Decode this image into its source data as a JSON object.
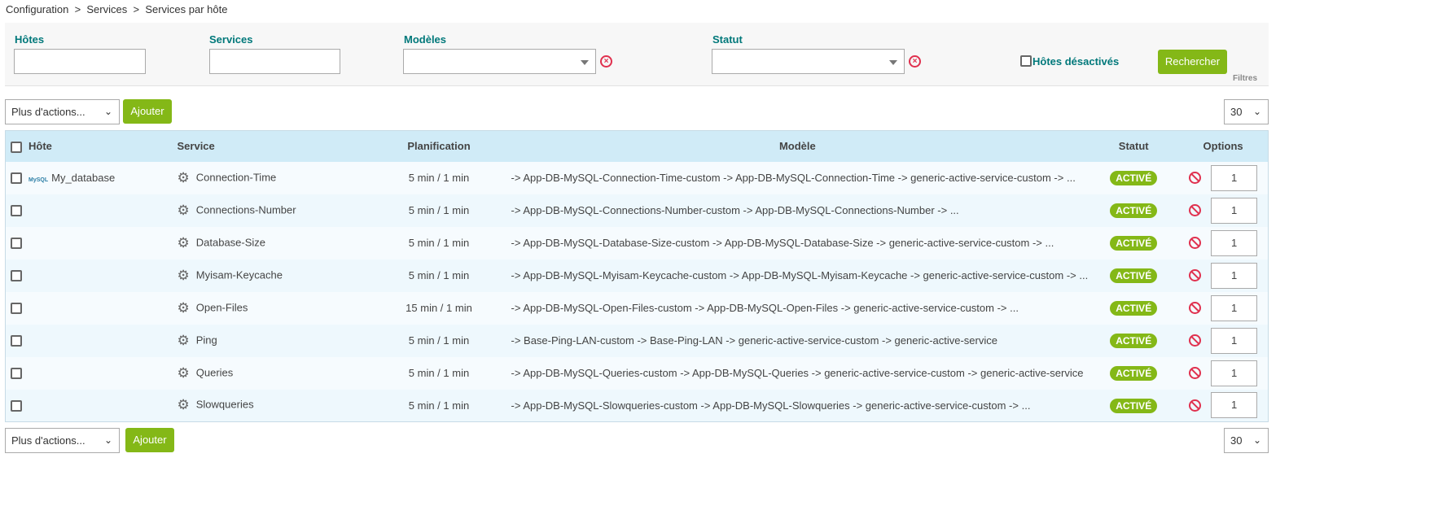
{
  "breadcrumb": [
    "Configuration",
    ">",
    "Services",
    ">",
    "Services par hôte"
  ],
  "filters": {
    "hosts_label": "Hôtes",
    "services_label": "Services",
    "templates_label": "Modèles",
    "status_label": "Statut",
    "disabled_hosts_label": "Hôtes désactivés",
    "search_label": "Rechercher",
    "section_label": "Filtres",
    "hosts_value": "",
    "services_value": "",
    "templates_value": "",
    "status_value": ""
  },
  "toolbar": {
    "more_actions": "Plus d'actions...",
    "add_label": "Ajouter",
    "page_size": "30"
  },
  "table": {
    "headers": {
      "host": "Hôte",
      "service": "Service",
      "schedule": "Planification",
      "template": "Modèle",
      "status": "Statut",
      "options": "Options"
    },
    "rows": [
      {
        "host": "My_database",
        "service": "Connection-Time",
        "schedule": "5 min / 1 min",
        "template": "-> App-DB-MySQL-Connection-Time-custom -> App-DB-MySQL-Connection-Time -> generic-active-service-custom -> ...",
        "status": "ACTIVÉ",
        "dup": "1"
      },
      {
        "host": "",
        "service": "Connections-Number",
        "schedule": "5 min / 1 min",
        "template": "-> App-DB-MySQL-Connections-Number-custom -> App-DB-MySQL-Connections-Number -> ...",
        "status": "ACTIVÉ",
        "dup": "1"
      },
      {
        "host": "",
        "service": "Database-Size",
        "schedule": "5 min / 1 min",
        "template": "-> App-DB-MySQL-Database-Size-custom -> App-DB-MySQL-Database-Size -> generic-active-service-custom -> ...",
        "status": "ACTIVÉ",
        "dup": "1"
      },
      {
        "host": "",
        "service": "Myisam-Keycache",
        "schedule": "5 min / 1 min",
        "template": "-> App-DB-MySQL-Myisam-Keycache-custom -> App-DB-MySQL-Myisam-Keycache -> generic-active-service-custom -> ...",
        "status": "ACTIVÉ",
        "dup": "1"
      },
      {
        "host": "",
        "service": "Open-Files",
        "schedule": "15 min / 1 min",
        "template": "-> App-DB-MySQL-Open-Files-custom -> App-DB-MySQL-Open-Files -> generic-active-service-custom -> ...",
        "status": "ACTIVÉ",
        "dup": "1"
      },
      {
        "host": "",
        "service": "Ping",
        "schedule": "5 min / 1 min",
        "template": "-> Base-Ping-LAN-custom -> Base-Ping-LAN -> generic-active-service-custom -> generic-active-service",
        "status": "ACTIVÉ",
        "dup": "1"
      },
      {
        "host": "",
        "service": "Queries",
        "schedule": "5 min / 1 min",
        "template": "-> App-DB-MySQL-Queries-custom -> App-DB-MySQL-Queries -> generic-active-service-custom -> generic-active-service",
        "status": "ACTIVÉ",
        "dup": "1"
      },
      {
        "host": "",
        "service": "Slowqueries",
        "schedule": "5 min / 1 min",
        "template": "-> App-DB-MySQL-Slowqueries-custom -> App-DB-MySQL-Slowqueries -> generic-active-service-custom -> ...",
        "status": "ACTIVÉ",
        "dup": "1"
      }
    ]
  },
  "host_icon_text": "MySQL",
  "colors": {
    "accent": "#84b817",
    "label": "#00787a",
    "header": "#d0ebf7",
    "danger": "#e0304e"
  }
}
